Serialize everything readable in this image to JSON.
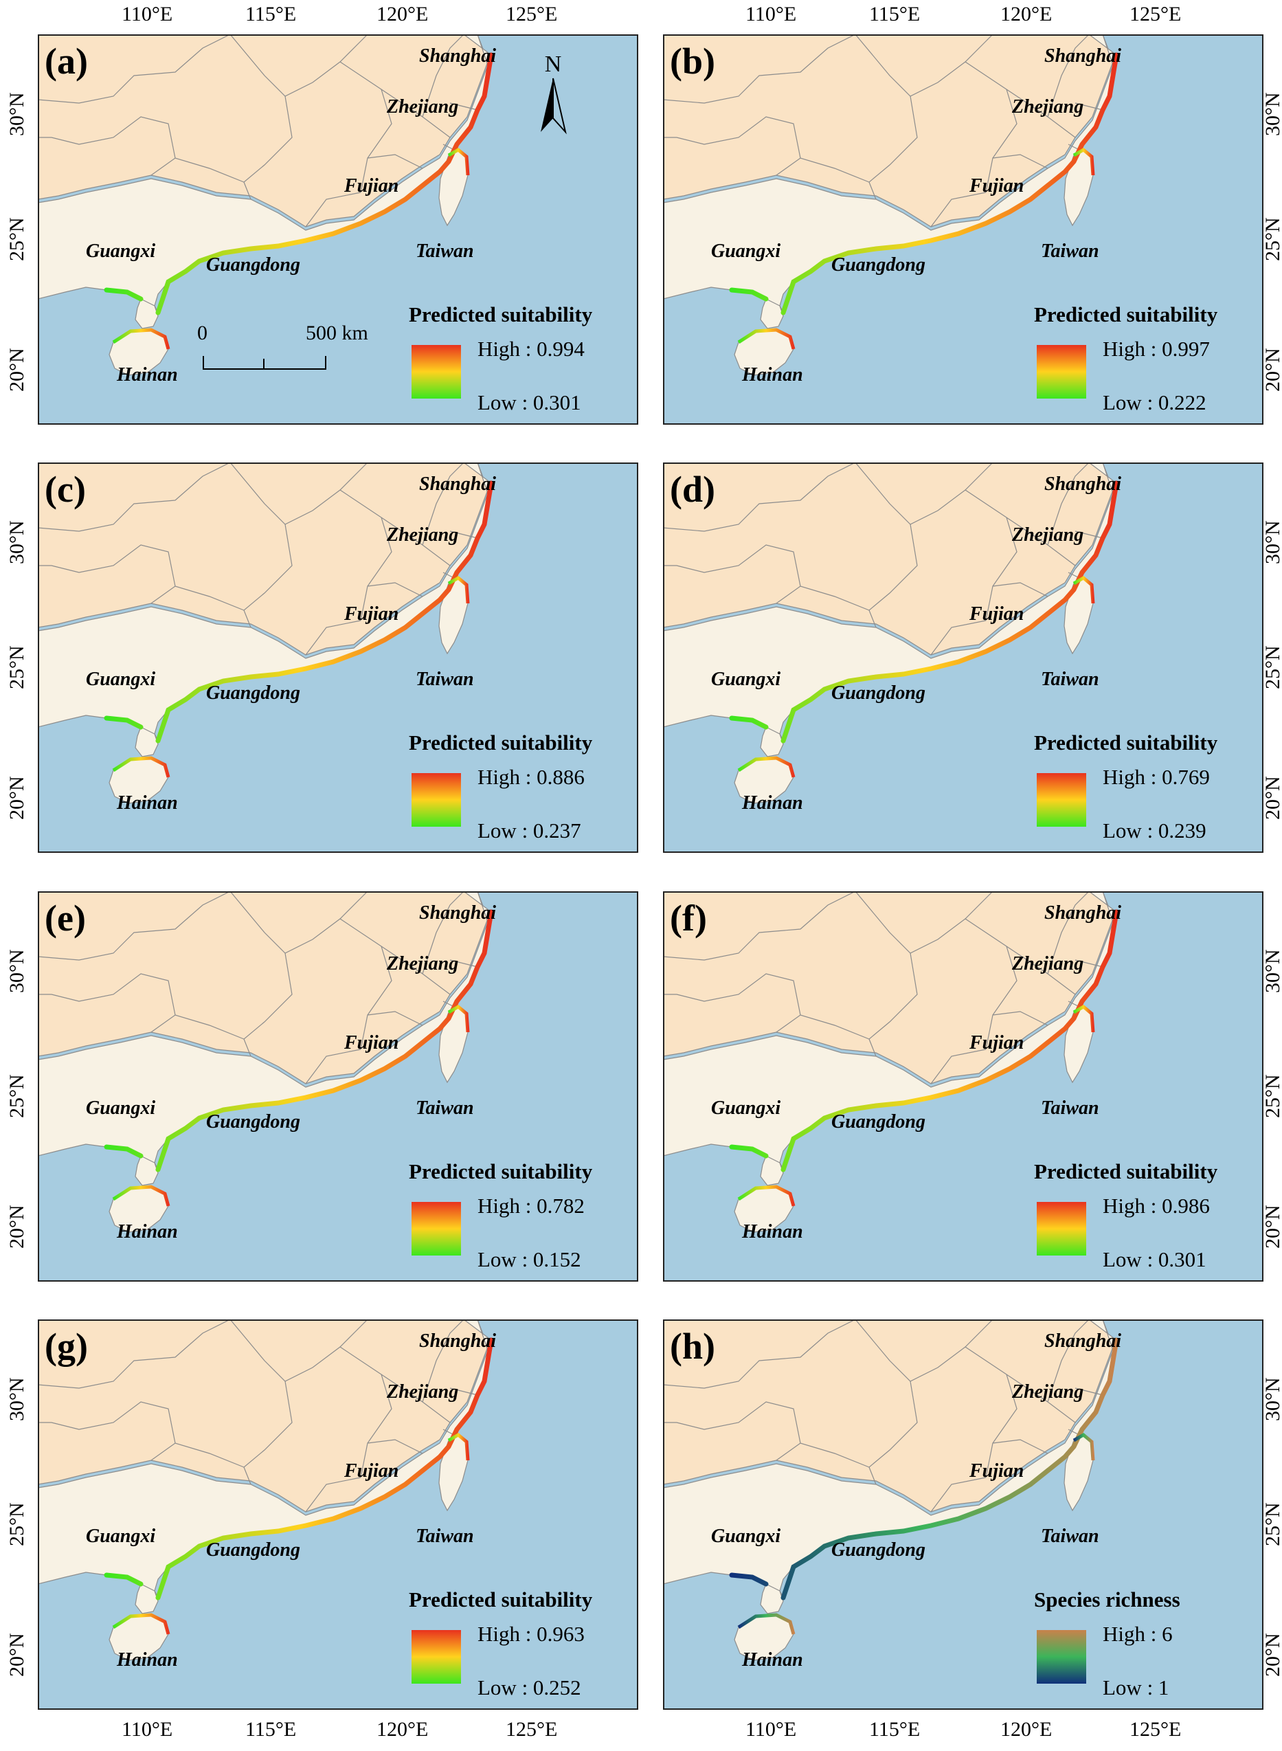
{
  "axis": {
    "lon_ticks": [
      "110°E",
      "115°E",
      "120°E",
      "125°E"
    ],
    "lat_ticks": [
      "30°N",
      "25°N",
      "20°N"
    ]
  },
  "provinces": {
    "shanghai": "Shanghai",
    "zhejiang": "Zhejiang",
    "fujian": "Fujian",
    "taiwan": "Taiwan",
    "guangxi": "Guangxi",
    "guangdong": "Guangdong",
    "hainan": "Hainan"
  },
  "north_arrow": "N",
  "scale_bar": {
    "start": "0",
    "end": "500 km"
  },
  "panels": [
    {
      "label": "(a)",
      "legend_title": "Predicted suitability",
      "high": "High : 0.994",
      "low": "Low : 0.301",
      "high_value": 0.994,
      "low_value": 0.301
    },
    {
      "label": "(b)",
      "legend_title": "Predicted suitability",
      "high": "High : 0.997",
      "low": "Low : 0.222",
      "high_value": 0.997,
      "low_value": 0.222
    },
    {
      "label": "(c)",
      "legend_title": "Predicted suitability",
      "high": "High : 0.886",
      "low": "Low : 0.237",
      "high_value": 0.886,
      "low_value": 0.237
    },
    {
      "label": "(d)",
      "legend_title": "Predicted suitability",
      "high": "High : 0.769",
      "low": "Low : 0.239",
      "high_value": 0.769,
      "low_value": 0.239
    },
    {
      "label": "(e)",
      "legend_title": "Predicted suitability",
      "high": "High : 0.782",
      "low": "Low : 0.152",
      "high_value": 0.782,
      "low_value": 0.152
    },
    {
      "label": "(f)",
      "legend_title": "Predicted suitability",
      "high": "High : 0.986",
      "low": "Low : 0.301",
      "high_value": 0.986,
      "low_value": 0.301
    },
    {
      "label": "(g)",
      "legend_title": "Predicted suitability",
      "high": "High : 0.963",
      "low": "Low : 0.252",
      "high_value": 0.963,
      "low_value": 0.252
    },
    {
      "label": "(h)",
      "legend_title": "Species richness",
      "high": "High : 6",
      "low": "Low : 1",
      "high_value": 6,
      "low_value": 1
    }
  ],
  "colors": {
    "sea": "#a7cce0",
    "land_inland": "#fae3c5",
    "land_coastal": "#f8f2e4",
    "border": "#8c8c8c",
    "suitability_high": "#e8321e",
    "suitability_mid": "#ffd21e",
    "suitability_low": "#3ce61e",
    "richness_high": "#c8824b",
    "richness_mid": "#3cb45a",
    "richness_low": "#10307a"
  }
}
